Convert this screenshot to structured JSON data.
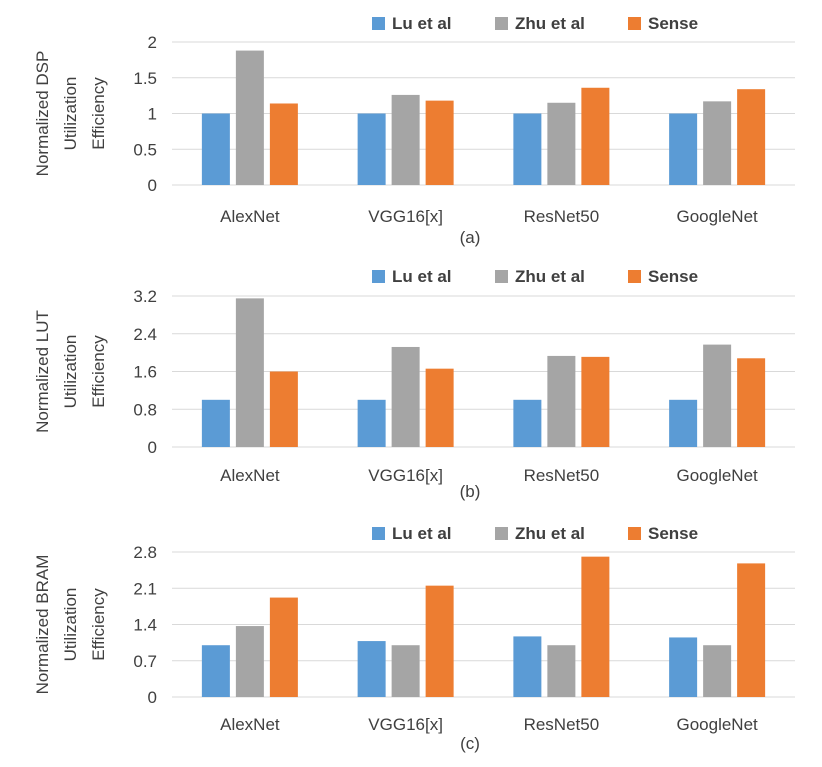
{
  "colors": {
    "lu": "#5B9BD5",
    "zhu": "#A5A5A5",
    "sense": "#ED7D31"
  },
  "chart_data": [
    {
      "type": "bar",
      "subtitle": "(a)",
      "ylabel_lines": [
        "Normalized DSP",
        "Utilization",
        "Efficiency"
      ],
      "categories": [
        "AlexNet",
        "VGG16[x]",
        "ResNet50",
        "GoogleNet"
      ],
      "ylim": [
        0,
        2
      ],
      "yticks": [
        "0",
        "0.5",
        "1",
        "1.5",
        "2"
      ],
      "series": [
        {
          "name": "Lu et al",
          "values": [
            1.0,
            1.0,
            1.0,
            1.0
          ]
        },
        {
          "name": "Zhu et al",
          "values": [
            1.88,
            1.26,
            1.15,
            1.17
          ]
        },
        {
          "name": "Sense",
          "values": [
            1.14,
            1.18,
            1.36,
            1.34
          ]
        }
      ]
    },
    {
      "type": "bar",
      "subtitle": "(b)",
      "ylabel_lines": [
        "Normalized  LUT",
        "Utilization",
        "Efficiency"
      ],
      "categories": [
        "AlexNet",
        "VGG16[x]",
        "ResNet50",
        "GoogleNet"
      ],
      "ylim": [
        0,
        3.2
      ],
      "yticks": [
        "0",
        "0.8",
        "1.6",
        "2.4",
        "3.2"
      ],
      "series": [
        {
          "name": "Lu et al",
          "values": [
            1.0,
            1.0,
            1.0,
            1.0
          ]
        },
        {
          "name": "Zhu et al",
          "values": [
            3.15,
            2.12,
            1.93,
            2.17
          ]
        },
        {
          "name": "Sense",
          "values": [
            1.6,
            1.66,
            1.91,
            1.88
          ]
        }
      ]
    },
    {
      "type": "bar",
      "subtitle": "(c)",
      "ylabel_lines": [
        "Normalized  BRAM",
        "Utilization",
        "Efficiency"
      ],
      "categories": [
        "AlexNet",
        "VGG16[x]",
        "ResNet50",
        "GoogleNet"
      ],
      "ylim": [
        0,
        2.8
      ],
      "yticks": [
        "0",
        "0.7",
        "1.4",
        "2.1",
        "2.8"
      ],
      "series": [
        {
          "name": "Lu et al",
          "values": [
            1.0,
            1.08,
            1.17,
            1.15
          ]
        },
        {
          "name": "Zhu et al",
          "values": [
            1.37,
            1.0,
            1.0,
            1.0
          ]
        },
        {
          "name": "Sense",
          "values": [
            1.92,
            2.15,
            2.71,
            2.58
          ]
        }
      ]
    }
  ]
}
